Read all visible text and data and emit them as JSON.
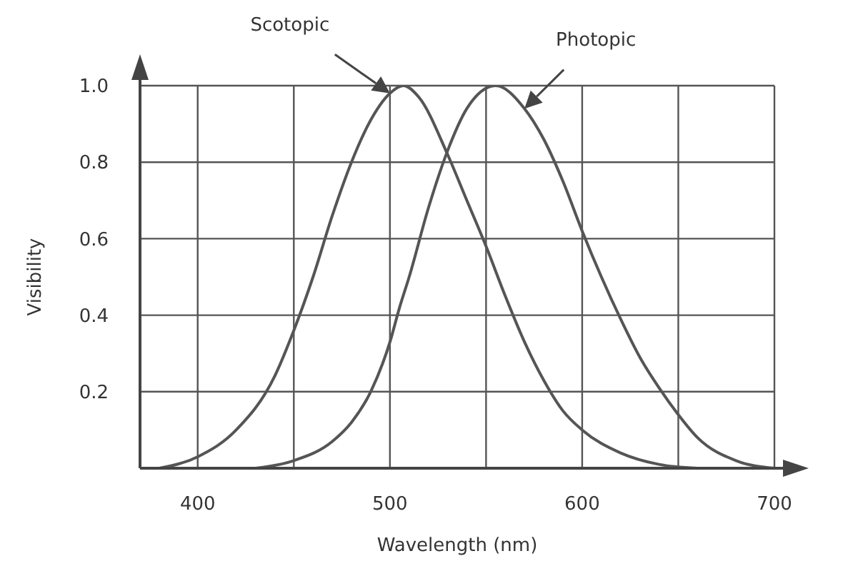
{
  "chart_data": {
    "type": "line",
    "xlabel": "Wavelength (nm)",
    "ylabel": "Visibility",
    "xlim": [
      370,
      700
    ],
    "xticks": [
      400,
      {
        "value": 450,
        "label": null
      },
      500,
      {
        "value": 550,
        "label": null
      },
      600,
      {
        "value": 650,
        "label": null
      },
      700
    ],
    "ylim": [
      0,
      1.0
    ],
    "yticks": [
      {
        "value": 0,
        "label": null
      },
      0.2,
      0.4,
      0.6,
      0.8,
      {
        "value": 1.0,
        "label": "1.0"
      }
    ],
    "grid": true,
    "marker": "none",
    "line_style": "solid",
    "legend": false,
    "series": [
      {
        "color": "#555555",
        "x": [
          380,
          400,
          420,
          440,
          450,
          460,
          470,
          480,
          490,
          500,
          507,
          515,
          530,
          540,
          550,
          560,
          570,
          580,
          590,
          600,
          620,
          640,
          660
        ],
        "values": [
          0,
          0.03,
          0.1,
          0.24,
          0.36,
          0.5,
          0.66,
          0.8,
          0.91,
          0.98,
          1.0,
          0.97,
          0.82,
          0.7,
          0.58,
          0.45,
          0.33,
          0.23,
          0.15,
          0.1,
          0.04,
          0.01,
          0
        ]
      },
      {
        "color": "#555555",
        "x": [
          430,
          450,
          470,
          480,
          490,
          500,
          505,
          510,
          520,
          530,
          540,
          555,
          570,
          580,
          590,
          600,
          610,
          620,
          630,
          640,
          650,
          660,
          680,
          700
        ],
        "values": [
          0,
          0.02,
          0.07,
          0.12,
          0.2,
          0.33,
          0.42,
          0.5,
          0.68,
          0.83,
          0.94,
          1.0,
          0.94,
          0.86,
          0.75,
          0.62,
          0.5,
          0.39,
          0.29,
          0.21,
          0.14,
          0.08,
          0.02,
          0
        ]
      }
    ],
    "annotations": [
      "Scotopic",
      "Photopic"
    ]
  }
}
